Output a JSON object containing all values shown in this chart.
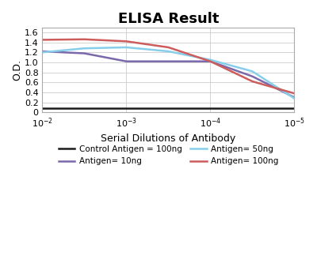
{
  "title": "ELISA Result",
  "xlabel": "Serial Dilutions of Antibody",
  "ylabel": "O.D.",
  "xlim_log": [
    -2,
    -5
  ],
  "ylim": [
    0,
    1.7
  ],
  "yticks": [
    0,
    0.2,
    0.4,
    0.6,
    0.8,
    1.0,
    1.2,
    1.4,
    1.6
  ],
  "xtick_labels": [
    "10^-2",
    "10^-3",
    "10^-4",
    "10^-5"
  ],
  "xtick_values": [
    -2,
    -3,
    -4,
    -5
  ],
  "lines": [
    {
      "label": "Control Antigen = 100ng",
      "color": "#1a1a1a",
      "x": [
        -2,
        -2.5,
        -3,
        -3.5,
        -4,
        -4.5,
        -5
      ],
      "y": [
        0.08,
        0.08,
        0.08,
        0.08,
        0.08,
        0.08,
        0.08
      ]
    },
    {
      "label": "Antigen= 10ng",
      "color": "#7B68AA",
      "x": [
        -2,
        -2.5,
        -3,
        -3.5,
        -4,
        -4.5,
        -5
      ],
      "y": [
        1.22,
        1.18,
        1.02,
        1.02,
        1.02,
        0.72,
        0.3
      ]
    },
    {
      "label": "Antigen= 50ng",
      "color": "#87CEEB",
      "x": [
        -2,
        -2.5,
        -3,
        -3.5,
        -4,
        -4.5,
        -5
      ],
      "y": [
        1.2,
        1.28,
        1.3,
        1.22,
        1.05,
        0.82,
        0.28
      ]
    },
    {
      "label": "Antigen= 100ng",
      "color": "#CD5C5C",
      "x": [
        -2,
        -2.5,
        -3,
        -3.5,
        -4,
        -4.5,
        -5
      ],
      "y": [
        1.45,
        1.46,
        1.42,
        1.3,
        1.02,
        0.62,
        0.38
      ]
    }
  ],
  "legend_entries": [
    {
      "label": "Control Antigen = 100ng",
      "color": "#1a1a1a"
    },
    {
      "label": "Antigen= 10ng",
      "color": "#7B68AA"
    },
    {
      "label": "Antigen= 50ng",
      "color": "#87CEEB"
    },
    {
      "label": "Antigen= 100ng",
      "color": "#CD5C5C"
    }
  ],
  "background_color": "#ffffff",
  "grid_color": "#cccccc",
  "title_fontsize": 13,
  "label_fontsize": 9,
  "tick_fontsize": 8,
  "legend_fontsize": 7.5,
  "linewidth": 1.8
}
